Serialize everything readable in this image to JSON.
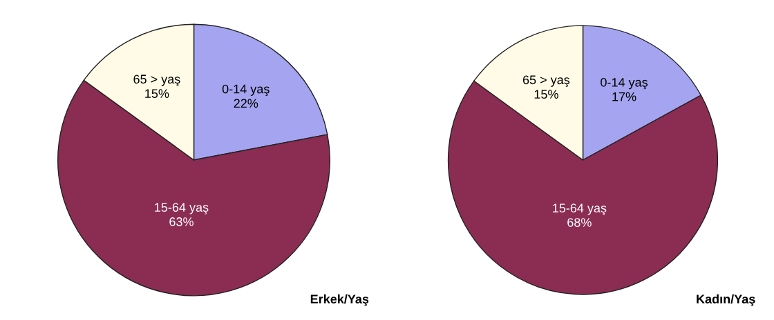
{
  "chart_data": [
    {
      "type": "pie",
      "title": "Erkek/Yaş",
      "categories": [
        "0-14 yaş",
        "15-64 yaş",
        "65 > yaş"
      ],
      "values": [
        22,
        63,
        15
      ],
      "colors": [
        "#a4a4f0",
        "#8b2c52",
        "#fffbe6"
      ],
      "value_labels": [
        "22%",
        "63%",
        "15%"
      ]
    },
    {
      "type": "pie",
      "title": "Kadın/Yaş",
      "categories": [
        "0-14 yaş",
        "15-64 yaş",
        "65 > yaş"
      ],
      "values": [
        17,
        68,
        15
      ],
      "colors": [
        "#a4a4f0",
        "#8b2c52",
        "#fffbe6"
      ],
      "value_labels": [
        "17%",
        "68%",
        "15%"
      ]
    }
  ]
}
